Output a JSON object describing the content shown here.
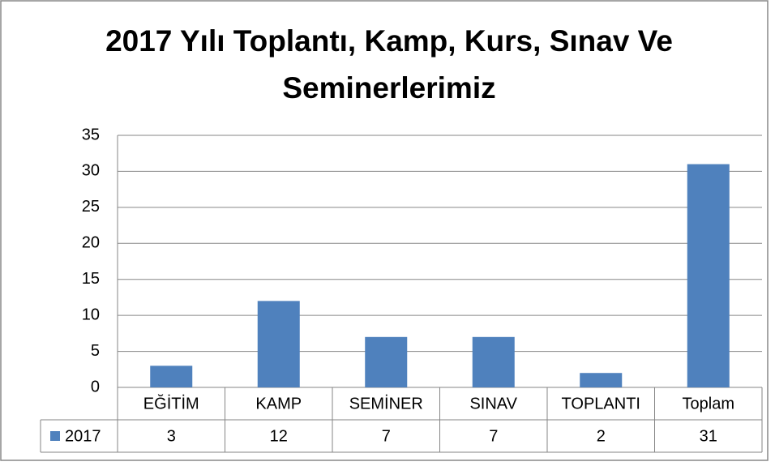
{
  "chart_data": {
    "type": "bar",
    "title": "2017 Yılı Toplantı, Kamp, Kurs, Sınav Ve Seminerlerimiz",
    "categories": [
      "EĞİTİM",
      "KAMP",
      "SEMİNER",
      "SINAV",
      "TOPLANTI",
      "Toplam"
    ],
    "series": [
      {
        "name": "2017",
        "color": "#4f81bd",
        "values": [
          3,
          12,
          7,
          7,
          2,
          31
        ]
      }
    ],
    "ylim": [
      0,
      35
    ],
    "yticks": [
      0,
      5,
      10,
      15,
      20,
      25,
      30,
      35
    ],
    "grid": true
  }
}
